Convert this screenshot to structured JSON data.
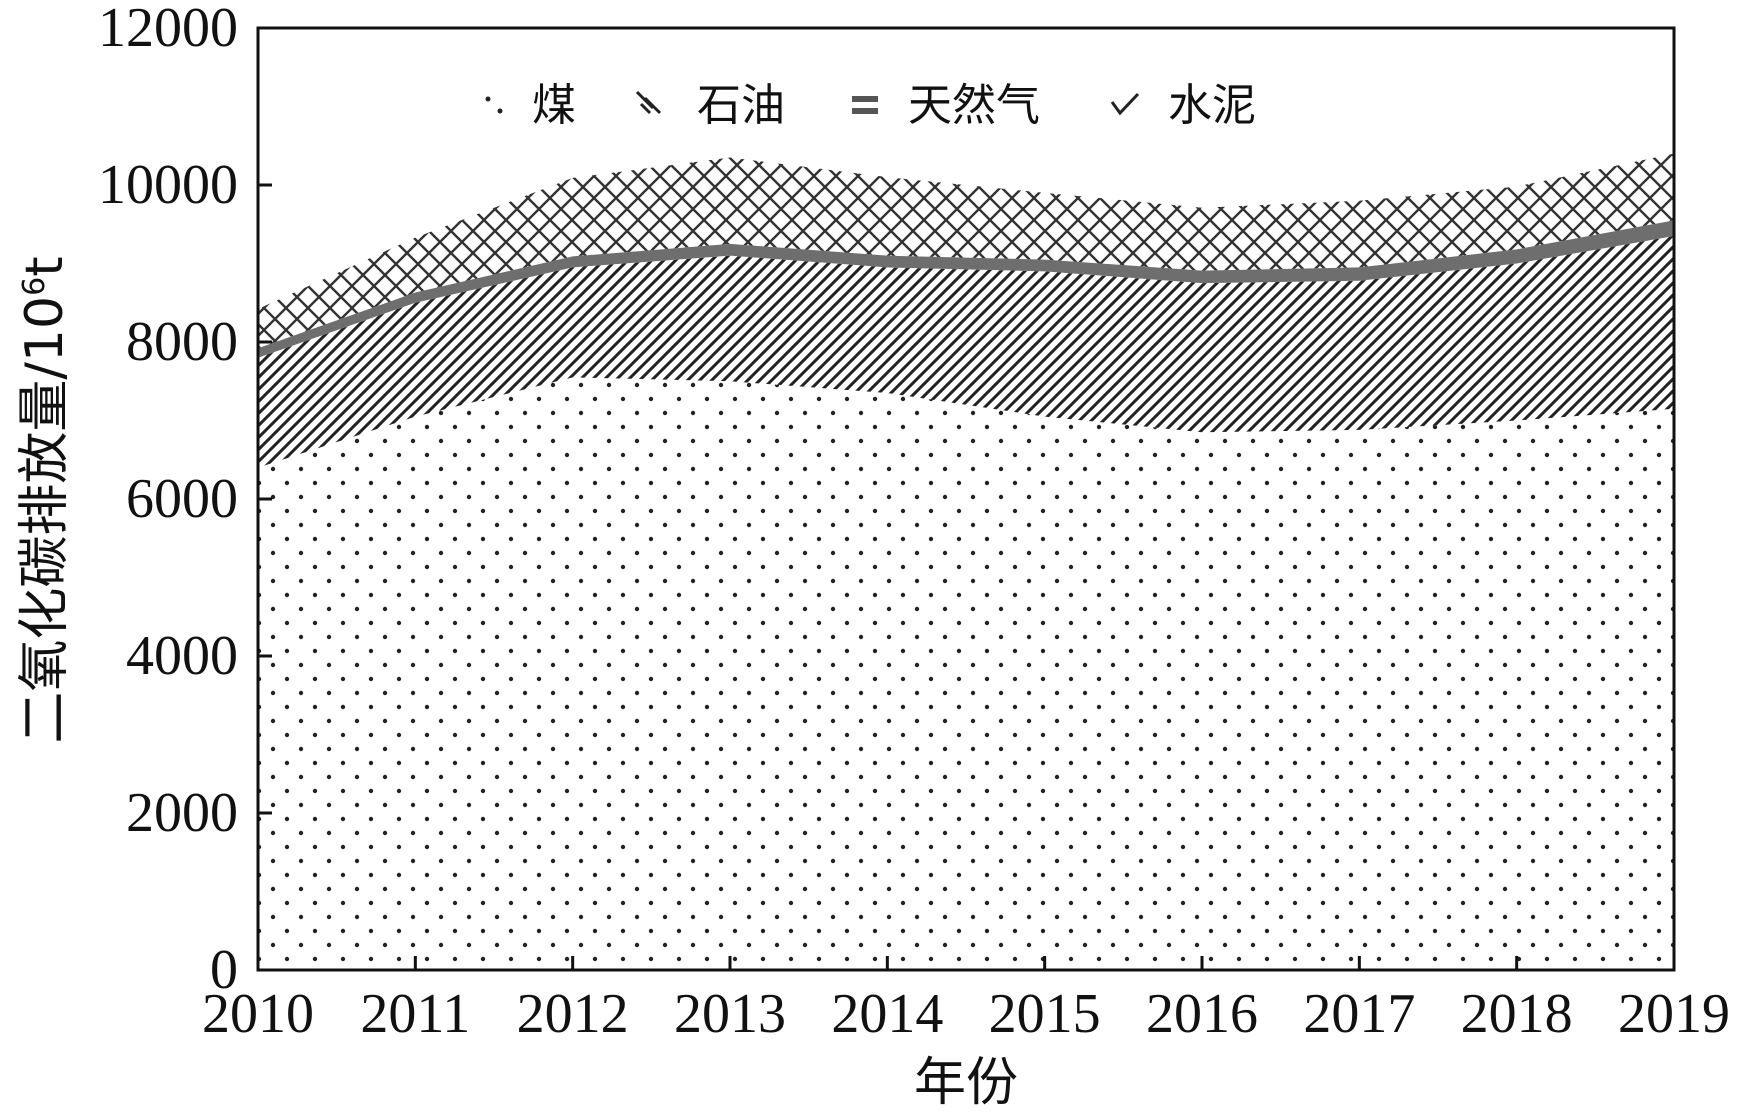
{
  "chart_data": {
    "type": "area",
    "stacked": true,
    "title": "",
    "xlabel": "年份",
    "ylabel": "二氧化碳排放量/10⁶t",
    "ylabel_parts": {
      "main": "二氧化碳排放量/10",
      "sup": "6",
      "unit": "t"
    },
    "x": [
      2010,
      2011,
      2012,
      2013,
      2014,
      2015,
      2016,
      2017,
      2018,
      2019
    ],
    "x_tick_labels": [
      "2010",
      "2011",
      "2012",
      "2013",
      "2014",
      "2015",
      "2016",
      "2017",
      "2018",
      "2019"
    ],
    "ylim": [
      0,
      12000
    ],
    "y_ticks": [
      0,
      2000,
      4000,
      6000,
      8000,
      10000,
      12000
    ],
    "y_tick_labels": [
      "0",
      "2000",
      "4000",
      "6000",
      "8000",
      "10000",
      "12000"
    ],
    "grid": false,
    "legend_position": "top",
    "series": [
      {
        "name": "煤",
        "pattern": "dots",
        "values": [
          6400,
          7050,
          7550,
          7500,
          7350,
          7050,
          6850,
          6880,
          7000,
          7150
        ]
      },
      {
        "name": "石油",
        "pattern": "diagonal-hatch",
        "values": [
          1400,
          1450,
          1400,
          1600,
          1600,
          1850,
          1900,
          1900,
          2000,
          2200
        ]
      },
      {
        "name": "天然气",
        "pattern": "solid-gray",
        "values": [
          120,
          130,
          140,
          150,
          150,
          150,
          160,
          170,
          180,
          200
        ]
      },
      {
        "name": "水泥",
        "pattern": "cross-hatch",
        "values": [
          500,
          700,
          1000,
          1100,
          1000,
          850,
          800,
          850,
          800,
          850
        ]
      }
    ]
  },
  "legend": {
    "items": [
      {
        "label": "煤",
        "symbol": "dots"
      },
      {
        "label": "石油",
        "symbol": "diagonal"
      },
      {
        "label": "天然气",
        "symbol": "bar"
      },
      {
        "label": "水泥",
        "symbol": "check"
      }
    ]
  },
  "colors": {
    "axis": "#111111",
    "coal_dot": "#222222",
    "oil_hatch": "#222222",
    "gas_fill": "#6e6e6e",
    "cement_hatch": "#333333"
  }
}
